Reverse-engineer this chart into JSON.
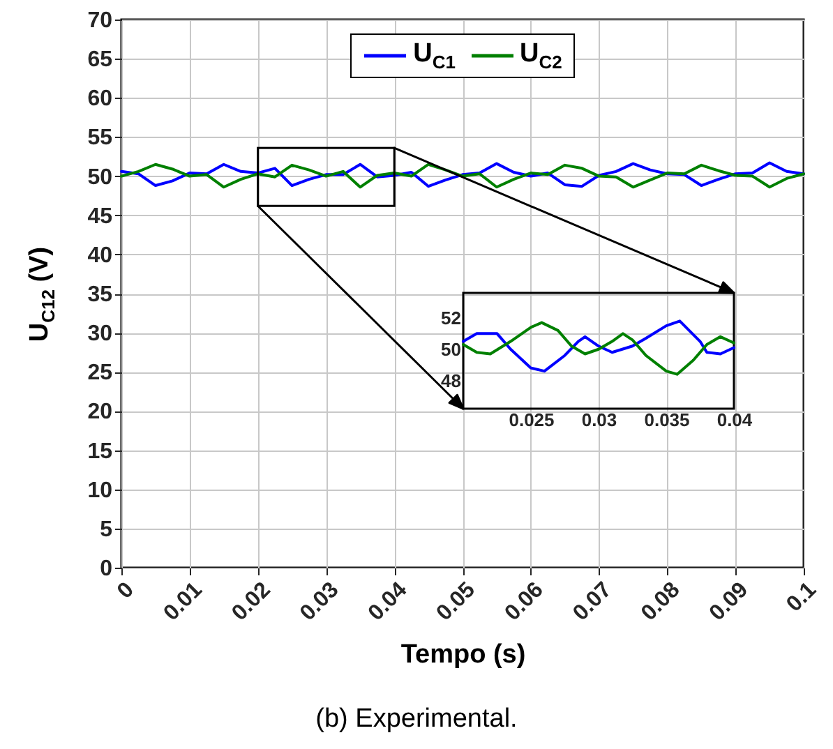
{
  "chart_data": [
    {
      "type": "line",
      "xlabel": "Tempo (s)",
      "ylabel": "U$_{C12}$ (V)",
      "annotations": [
        "(b) Experimental."
      ],
      "x": [
        0,
        0.0025,
        0.005,
        0.0075,
        0.01,
        0.0125,
        0.015,
        0.0175,
        0.02,
        0.0225,
        0.025,
        0.0275,
        0.03,
        0.0325,
        0.035,
        0.0375,
        0.04,
        0.0425,
        0.045,
        0.0475,
        0.05,
        0.0525,
        0.055,
        0.0575,
        0.06,
        0.0625,
        0.065,
        0.0675,
        0.07,
        0.0725,
        0.075,
        0.0775,
        0.08,
        0.0825,
        0.085,
        0.0875,
        0.09,
        0.0925,
        0.095,
        0.0975,
        0.1
      ],
      "series": [
        {
          "name": "U$_{C1}$",
          "color": "#0000ff",
          "values": [
            50.6,
            50.3,
            48.8,
            49.4,
            50.4,
            50.3,
            51.5,
            50.6,
            50.4,
            51.0,
            48.8,
            49.6,
            50.2,
            50.2,
            51.5,
            49.9,
            50.1,
            50.5,
            48.7,
            49.5,
            50.2,
            50.4,
            51.6,
            50.5,
            50.0,
            50.4,
            48.9,
            48.7,
            50.1,
            50.6,
            51.6,
            50.8,
            50.3,
            50.2,
            48.8,
            49.6,
            50.3,
            50.4,
            51.7,
            50.6,
            50.3
          ]
        },
        {
          "name": "U$_{C2}$",
          "color": "#008000",
          "values": [
            50.0,
            50.6,
            51.5,
            50.9,
            50.0,
            50.2,
            48.6,
            49.6,
            50.3,
            49.9,
            51.4,
            50.8,
            50.0,
            50.6,
            48.6,
            50.1,
            50.4,
            50.0,
            51.5,
            50.8,
            50.0,
            50.3,
            48.6,
            49.6,
            50.4,
            50.2,
            51.4,
            51.0,
            50.0,
            49.9,
            48.6,
            49.5,
            50.4,
            50.3,
            51.4,
            50.7,
            50.1,
            50.0,
            48.6,
            49.7,
            50.3
          ]
        }
      ],
      "xlim": [
        0,
        0.1
      ],
      "ylim": [
        0,
        70
      ],
      "xticks": [
        0,
        0.01,
        0.02,
        0.03,
        0.04,
        0.05,
        0.06,
        0.07,
        0.08,
        0.09,
        0.1
      ],
      "yticks": [
        0,
        5,
        10,
        15,
        20,
        25,
        30,
        35,
        40,
        45,
        50,
        55,
        60,
        65,
        70
      ],
      "grid": true,
      "legend": "top"
    },
    {
      "type": "line",
      "series": [
        {
          "color": "#0000ff",
          "x": [
            0.02,
            0.021,
            0.0225,
            0.0235,
            0.025,
            0.026,
            0.0275,
            0.0285,
            0.029,
            0.03,
            0.031,
            0.0325,
            0.0335,
            0.035,
            0.036,
            0.0375,
            0.038,
            0.039,
            0.04
          ],
          "values": [
            50.5,
            51.0,
            51.0,
            50.0,
            48.8,
            48.6,
            49.6,
            50.5,
            50.8,
            50.2,
            49.8,
            50.2,
            50.7,
            51.5,
            51.8,
            50.5,
            49.8,
            49.7,
            50.1
          ]
        },
        {
          "color": "#008000",
          "x": [
            0.02,
            0.021,
            0.022,
            0.0235,
            0.025,
            0.0258,
            0.027,
            0.028,
            0.029,
            0.03,
            0.031,
            0.0318,
            0.0325,
            0.0335,
            0.035,
            0.0358,
            0.037,
            0.038,
            0.039,
            0.04
          ],
          "values": [
            50.3,
            49.8,
            49.7,
            50.5,
            51.4,
            51.7,
            51.2,
            50.2,
            49.7,
            50.0,
            50.5,
            51.0,
            50.6,
            49.6,
            48.6,
            48.4,
            49.3,
            50.3,
            50.8,
            50.4
          ]
        }
      ],
      "xlim": [
        0.02,
        0.04
      ],
      "ylim": [
        46.2,
        53.6
      ],
      "xticks": [
        0.025,
        0.03,
        0.035,
        0.04
      ],
      "yticks": [
        48,
        50,
        52
      ]
    }
  ]
}
